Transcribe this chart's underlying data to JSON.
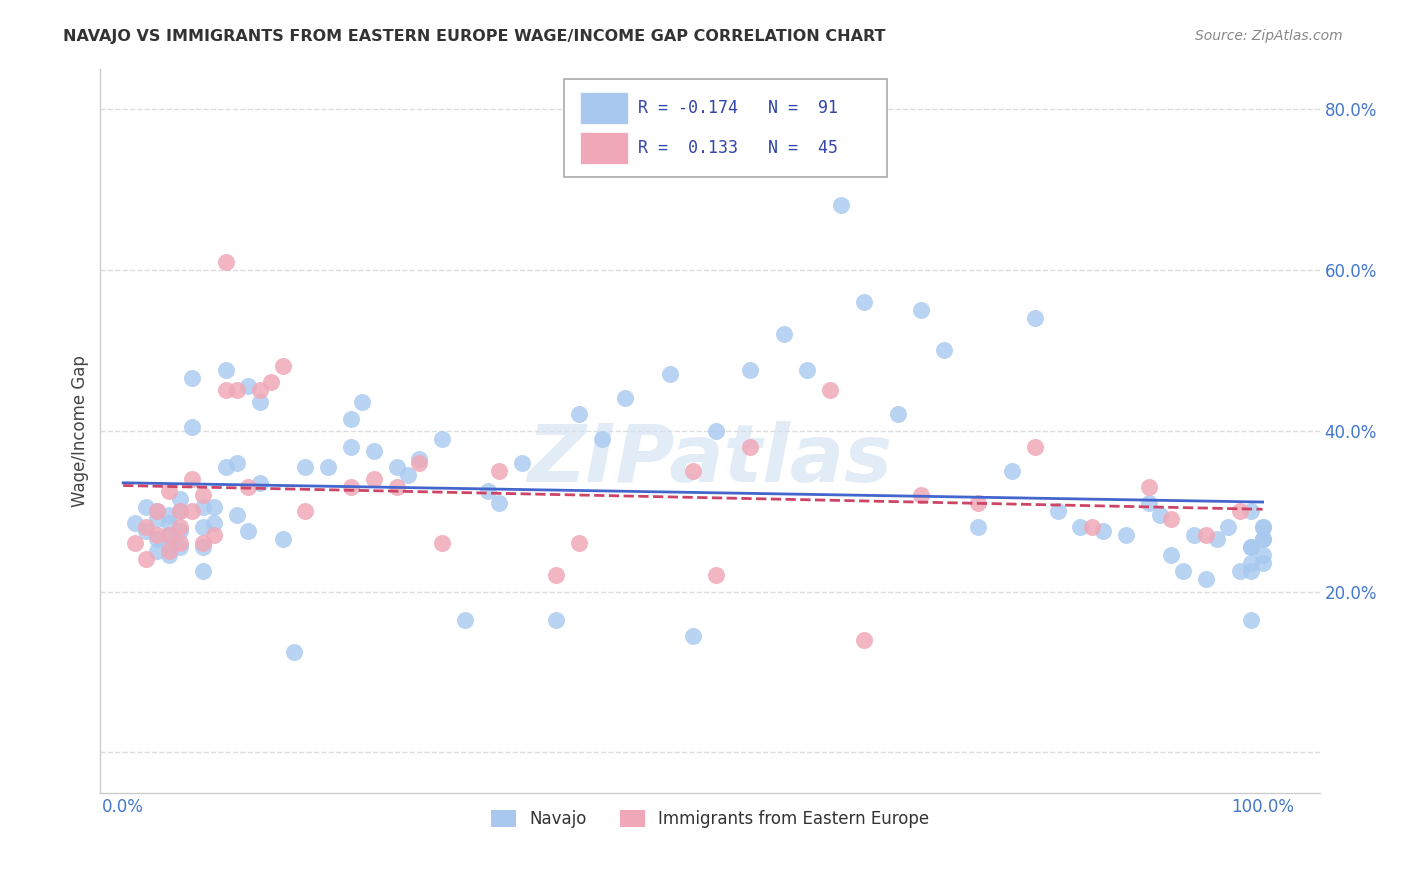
{
  "title": "NAVAJO VS IMMIGRANTS FROM EASTERN EUROPE WAGE/INCOME GAP CORRELATION CHART",
  "source": "Source: ZipAtlas.com",
  "ylabel": "Wage/Income Gap",
  "navajo_R": -0.174,
  "navajo_N": 91,
  "eastern_europe_R": 0.133,
  "eastern_europe_N": 45,
  "navajo_color": "#a8c8f0",
  "eastern_europe_color": "#f0a8b8",
  "navajo_line_color": "#4466cc",
  "eastern_europe_line_color": "#cc4466",
  "watermark": "ZIPatlas",
  "navajo_x": [
    0.01,
    0.02,
    0.02,
    0.03,
    0.03,
    0.03,
    0.03,
    0.04,
    0.04,
    0.04,
    0.04,
    0.04,
    0.05,
    0.05,
    0.05,
    0.05,
    0.06,
    0.06,
    0.07,
    0.07,
    0.07,
    0.07,
    0.08,
    0.08,
    0.09,
    0.09,
    0.1,
    0.1,
    0.11,
    0.11,
    0.12,
    0.12,
    0.14,
    0.15,
    0.16,
    0.18,
    0.2,
    0.2,
    0.21,
    0.22,
    0.24,
    0.25,
    0.26,
    0.28,
    0.3,
    0.32,
    0.33,
    0.35,
    0.38,
    0.4,
    0.42,
    0.44,
    0.48,
    0.5,
    0.52,
    0.55,
    0.58,
    0.6,
    0.63,
    0.65,
    0.68,
    0.7,
    0.72,
    0.75,
    0.78,
    0.8,
    0.82,
    0.84,
    0.86,
    0.88,
    0.9,
    0.91,
    0.92,
    0.93,
    0.94,
    0.95,
    0.96,
    0.97,
    0.98,
    0.99,
    0.99,
    0.99,
    0.99,
    0.99,
    0.99,
    1.0,
    1.0,
    1.0,
    1.0,
    1.0,
    1.0
  ],
  "navajo_y": [
    0.285,
    0.305,
    0.275,
    0.3,
    0.29,
    0.265,
    0.25,
    0.295,
    0.255,
    0.285,
    0.245,
    0.27,
    0.315,
    0.3,
    0.275,
    0.255,
    0.465,
    0.405,
    0.305,
    0.28,
    0.255,
    0.225,
    0.285,
    0.305,
    0.475,
    0.355,
    0.295,
    0.36,
    0.455,
    0.275,
    0.335,
    0.435,
    0.265,
    0.125,
    0.355,
    0.355,
    0.415,
    0.38,
    0.435,
    0.375,
    0.355,
    0.345,
    0.365,
    0.39,
    0.165,
    0.325,
    0.31,
    0.36,
    0.165,
    0.42,
    0.39,
    0.44,
    0.47,
    0.145,
    0.4,
    0.475,
    0.52,
    0.475,
    0.68,
    0.56,
    0.42,
    0.55,
    0.5,
    0.28,
    0.35,
    0.54,
    0.3,
    0.28,
    0.275,
    0.27,
    0.31,
    0.295,
    0.245,
    0.225,
    0.27,
    0.215,
    0.265,
    0.28,
    0.225,
    0.235,
    0.3,
    0.255,
    0.225,
    0.165,
    0.255,
    0.235,
    0.28,
    0.265,
    0.245,
    0.28,
    0.265
  ],
  "eastern_europe_x": [
    0.01,
    0.02,
    0.02,
    0.03,
    0.03,
    0.04,
    0.04,
    0.04,
    0.05,
    0.05,
    0.05,
    0.06,
    0.06,
    0.07,
    0.07,
    0.08,
    0.09,
    0.09,
    0.1,
    0.11,
    0.12,
    0.13,
    0.14,
    0.16,
    0.2,
    0.22,
    0.24,
    0.26,
    0.28,
    0.33,
    0.38,
    0.4,
    0.5,
    0.52,
    0.55,
    0.62,
    0.65,
    0.7,
    0.75,
    0.8,
    0.85,
    0.9,
    0.92,
    0.95,
    0.98
  ],
  "eastern_europe_y": [
    0.26,
    0.24,
    0.28,
    0.27,
    0.3,
    0.27,
    0.325,
    0.25,
    0.3,
    0.28,
    0.26,
    0.34,
    0.3,
    0.32,
    0.26,
    0.27,
    0.61,
    0.45,
    0.45,
    0.33,
    0.45,
    0.46,
    0.48,
    0.3,
    0.33,
    0.34,
    0.33,
    0.36,
    0.26,
    0.35,
    0.22,
    0.26,
    0.35,
    0.22,
    0.38,
    0.45,
    0.14,
    0.32,
    0.31,
    0.38,
    0.28,
    0.33,
    0.29,
    0.27,
    0.3
  ],
  "background_color": "#ffffff",
  "grid_color": "#dddddd",
  "xlim": [
    -0.02,
    1.05
  ],
  "ylim": [
    -0.05,
    0.85
  ]
}
